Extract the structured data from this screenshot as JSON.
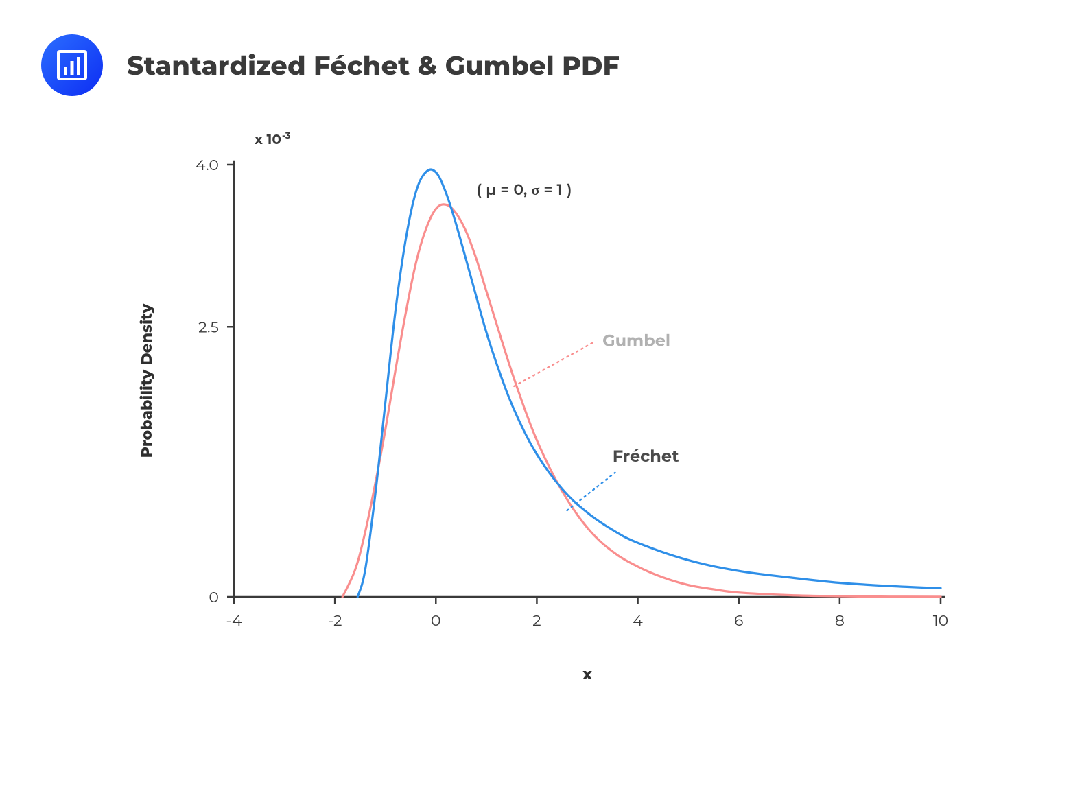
{
  "header": {
    "title": "Stantardized Féchet & Gumbel PDF",
    "icon": "bar-chart-icon",
    "icon_gradient": [
      "#2b6eff",
      "#0d2df3"
    ],
    "icon_stroke": "#ffffff"
  },
  "chart": {
    "type": "line",
    "background_color": "#ffffff",
    "axis_color": "#3a3a3a",
    "axis_width": 2.5,
    "xlim": [
      -4,
      10
    ],
    "ylim": [
      0,
      4.0
    ],
    "xticks": [
      -4,
      -2,
      0,
      2,
      4,
      6,
      8,
      10
    ],
    "yticks": [
      0,
      2.5,
      4.0
    ],
    "ytick_labels": [
      "0",
      "2.5",
      "4.0"
    ],
    "xtick_labels": [
      "-4",
      "-2",
      "0",
      "2",
      "4",
      "6",
      "8",
      "10"
    ],
    "xlabel": "x",
    "ylabel": "Probability Density",
    "exponent_label": "x 10⁻³",
    "exponent_label_raw": "x 10",
    "exponent_sup": "-3",
    "label_fontsize": 22,
    "tick_fontsize": 22,
    "annotation_params": "( μ = 0, σ = 1 )",
    "series": [
      {
        "name": "Fréchet",
        "color": "#2f8fe8",
        "line_width": 3.2,
        "label_position": {
          "x": 3.5,
          "y": 1.25
        },
        "leader_style": "dotted",
        "leader_color": "#2f8fe8",
        "data": [
          {
            "x": -1.55,
            "y": 0.0
          },
          {
            "x": -1.4,
            "y": 0.25
          },
          {
            "x": -1.2,
            "y": 0.95
          },
          {
            "x": -1.0,
            "y": 1.8
          },
          {
            "x": -0.8,
            "y": 2.65
          },
          {
            "x": -0.6,
            "y": 3.3
          },
          {
            "x": -0.4,
            "y": 3.74
          },
          {
            "x": -0.2,
            "y": 3.93
          },
          {
            "x": 0.0,
            "y": 3.93
          },
          {
            "x": 0.2,
            "y": 3.74
          },
          {
            "x": 0.4,
            "y": 3.45
          },
          {
            "x": 0.7,
            "y": 2.95
          },
          {
            "x": 1.0,
            "y": 2.45
          },
          {
            "x": 1.3,
            "y": 2.03
          },
          {
            "x": 1.6,
            "y": 1.68
          },
          {
            "x": 2.0,
            "y": 1.32
          },
          {
            "x": 2.5,
            "y": 1.0
          },
          {
            "x": 3.0,
            "y": 0.78
          },
          {
            "x": 3.5,
            "y": 0.62
          },
          {
            "x": 4.0,
            "y": 0.5
          },
          {
            "x": 5.0,
            "y": 0.34
          },
          {
            "x": 6.0,
            "y": 0.24
          },
          {
            "x": 7.0,
            "y": 0.18
          },
          {
            "x": 8.0,
            "y": 0.13
          },
          {
            "x": 9.0,
            "y": 0.1
          },
          {
            "x": 10.0,
            "y": 0.08
          }
        ]
      },
      {
        "name": "Gumbel",
        "color": "#f98e8e",
        "line_width": 3.2,
        "label_position": {
          "x": 3.3,
          "y": 2.32
        },
        "leader_style": "dotted",
        "leader_color": "#f98e8e",
        "data": [
          {
            "x": -1.85,
            "y": 0.0
          },
          {
            "x": -1.6,
            "y": 0.25
          },
          {
            "x": -1.4,
            "y": 0.6
          },
          {
            "x": -1.2,
            "y": 1.05
          },
          {
            "x": -1.0,
            "y": 1.55
          },
          {
            "x": -0.8,
            "y": 2.1
          },
          {
            "x": -0.6,
            "y": 2.62
          },
          {
            "x": -0.4,
            "y": 3.08
          },
          {
            "x": -0.2,
            "y": 3.4
          },
          {
            "x": 0.0,
            "y": 3.59
          },
          {
            "x": 0.2,
            "y": 3.63
          },
          {
            "x": 0.4,
            "y": 3.55
          },
          {
            "x": 0.6,
            "y": 3.38
          },
          {
            "x": 0.8,
            "y": 3.13
          },
          {
            "x": 1.0,
            "y": 2.83
          },
          {
            "x": 1.3,
            "y": 2.38
          },
          {
            "x": 1.6,
            "y": 1.95
          },
          {
            "x": 2.0,
            "y": 1.45
          },
          {
            "x": 2.5,
            "y": 0.98
          },
          {
            "x": 3.0,
            "y": 0.64
          },
          {
            "x": 3.5,
            "y": 0.42
          },
          {
            "x": 4.0,
            "y": 0.28
          },
          {
            "x": 4.5,
            "y": 0.18
          },
          {
            "x": 5.0,
            "y": 0.11
          },
          {
            "x": 5.5,
            "y": 0.07
          },
          {
            "x": 6.0,
            "y": 0.04
          },
          {
            "x": 7.0,
            "y": 0.016
          },
          {
            "x": 8.0,
            "y": 0.006
          },
          {
            "x": 9.0,
            "y": 0.002
          },
          {
            "x": 10.0,
            "y": 0.001
          }
        ]
      }
    ],
    "leader_lines": [
      {
        "series": "Gumbel",
        "from": {
          "x": 1.55,
          "y": 1.95
        },
        "to": {
          "x": 3.1,
          "y": 2.35
        }
      },
      {
        "series": "Fréchet",
        "from": {
          "x": 2.6,
          "y": 0.8
        },
        "to": {
          "x": 3.55,
          "y": 1.15
        }
      }
    ]
  }
}
